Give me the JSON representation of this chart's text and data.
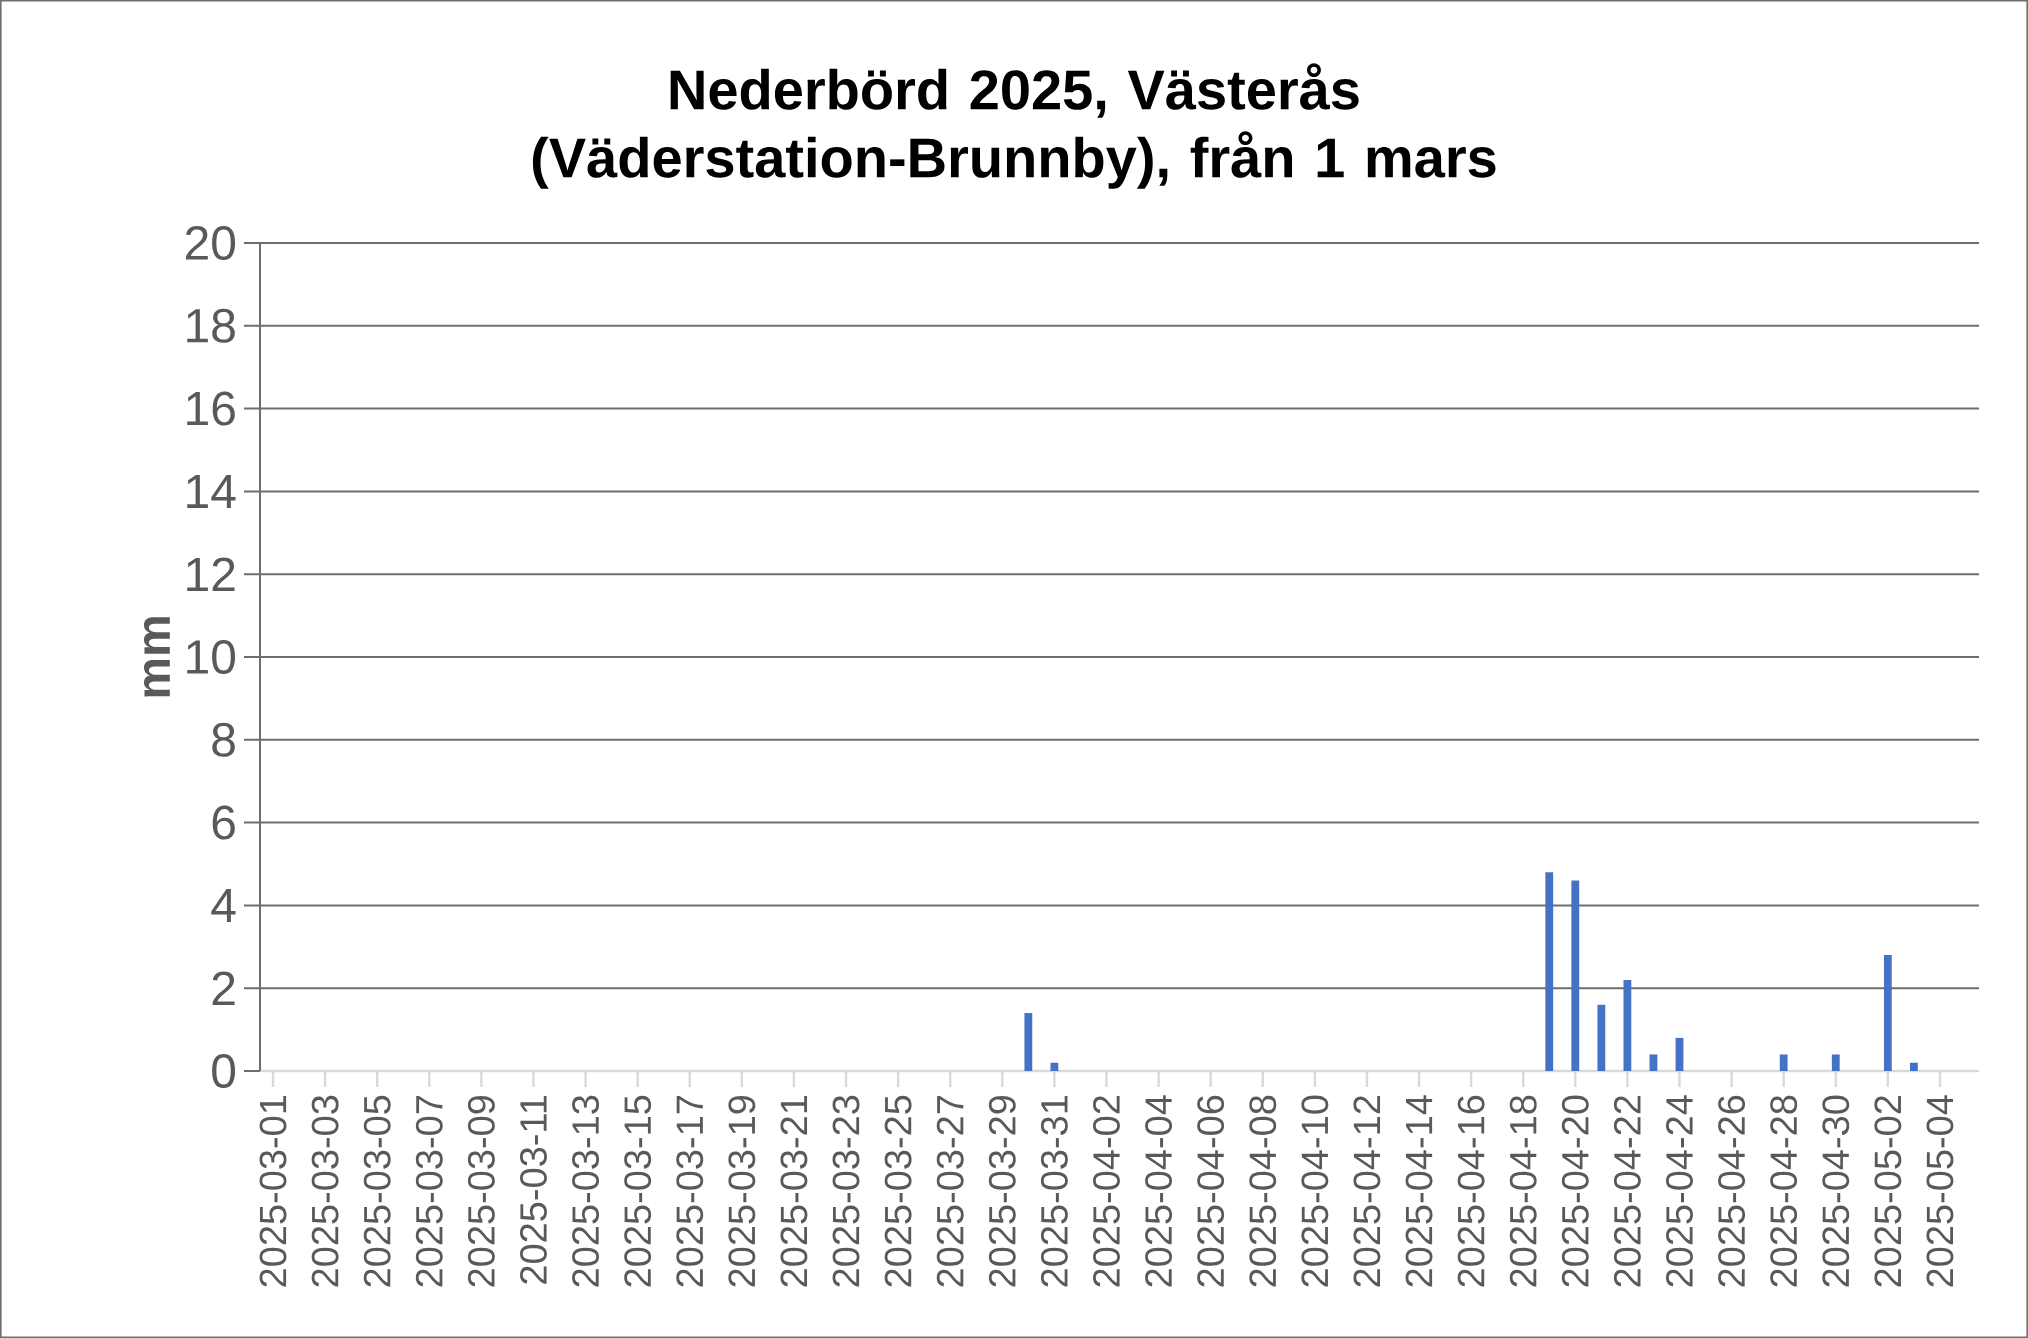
{
  "chart_data": {
    "type": "bar",
    "title": "Nederbörd 2025, Västerås (Väderstation-Brunnby), från 1 mars",
    "ylabel": "mm",
    "categories": [
      "2025-03-01",
      null,
      "2025-03-03",
      null,
      "2025-03-05",
      null,
      "2025-03-07",
      null,
      "2025-03-09",
      null,
      "2025-03-11",
      null,
      "2025-03-13",
      null,
      "2025-03-15",
      null,
      "2025-03-17",
      null,
      "2025-03-19",
      null,
      "2025-03-21",
      null,
      "2025-03-23",
      null,
      "2025-03-25",
      null,
      "2025-03-27",
      null,
      "2025-03-29",
      null,
      "2025-03-31",
      null,
      "2025-04-02",
      null,
      "2025-04-04",
      null,
      "2025-04-06",
      null,
      "2025-04-08",
      null,
      "2025-04-10",
      null,
      "2025-04-12",
      null,
      "2025-04-14",
      null,
      "2025-04-16",
      null,
      "2025-04-18",
      null,
      "2025-04-20",
      null,
      "2025-04-22",
      null,
      "2025-04-24",
      null,
      "2025-04-26",
      null,
      "2025-04-28",
      null,
      "2025-04-30",
      null,
      "2025-05-02",
      null,
      "2025-05-04",
      null
    ],
    "values": [
      null,
      null,
      null,
      null,
      null,
      null,
      null,
      null,
      null,
      null,
      null,
      null,
      null,
      null,
      null,
      null,
      null,
      null,
      null,
      null,
      null,
      null,
      null,
      null,
      null,
      null,
      null,
      null,
      null,
      1.4,
      0.2,
      null,
      null,
      null,
      null,
      null,
      null,
      null,
      null,
      null,
      null,
      null,
      null,
      null,
      null,
      null,
      null,
      null,
      null,
      4.8,
      4.6,
      1.6,
      2.2,
      0.4,
      0.8,
      null,
      null,
      null,
      0.4,
      null,
      0.4,
      null,
      2.8,
      0.2,
      null,
      null
    ],
    "color": "#4472c4",
    "ylim": [
      0,
      20
    ],
    "yticks": [
      0,
      2,
      4,
      6,
      8,
      10,
      12,
      14,
      16,
      18,
      20
    ],
    "grid": "y"
  }
}
